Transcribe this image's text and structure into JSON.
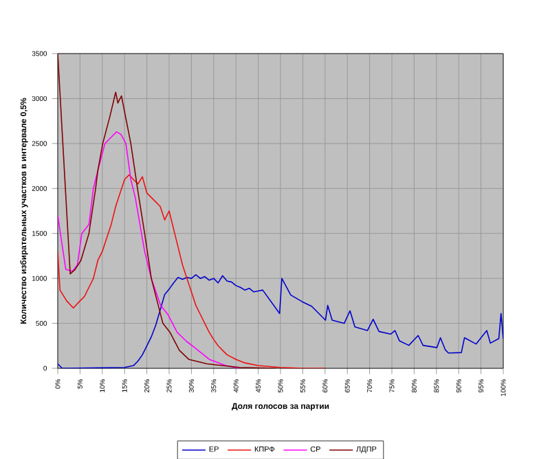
{
  "chart_data": {
    "type": "line",
    "xlabel": "Доля голосов за партии",
    "ylabel": "Количество избирательных участков в интервале 0,5%",
    "xlim": [
      0,
      100
    ],
    "ylim": [
      0,
      3500
    ],
    "xticks": [
      {
        "value": 0,
        "label": "0%"
      },
      {
        "value": 5,
        "label": "5%"
      },
      {
        "value": 10,
        "label": "10%"
      },
      {
        "value": 15,
        "label": "15%"
      },
      {
        "value": 20,
        "label": "20%"
      },
      {
        "value": 25,
        "label": "25%"
      },
      {
        "value": 30,
        "label": "30%"
      },
      {
        "value": 35,
        "label": "35%"
      },
      {
        "value": 40,
        "label": "40%"
      },
      {
        "value": 45,
        "label": "45%"
      },
      {
        "value": 50,
        "label": "50%"
      },
      {
        "value": 55,
        "label": "55%"
      },
      {
        "value": 60,
        "label": "60%"
      },
      {
        "value": 65,
        "label": "65%"
      },
      {
        "value": 70,
        "label": "70%"
      },
      {
        "value": 75,
        "label": "75%"
      },
      {
        "value": 80,
        "label": "80%"
      },
      {
        "value": 85,
        "label": "85%"
      },
      {
        "value": 90,
        "label": "90%"
      },
      {
        "value": 95,
        "label": "95%"
      },
      {
        "value": 100,
        "label": "100%"
      }
    ],
    "yticks": [
      0,
      500,
      1000,
      1500,
      2000,
      2500,
      3000,
      3500
    ],
    "grid": true,
    "legend": "bottom",
    "series": [
      {
        "name": "ЕР",
        "color": "#0000cc",
        "x": [
          0,
          1,
          15,
          17,
          18,
          19,
          20,
          21,
          22,
          23,
          24,
          25,
          26,
          27,
          28,
          29,
          30,
          31,
          32,
          33,
          34,
          35,
          36,
          37,
          38,
          39,
          40,
          41,
          42,
          43,
          44,
          45,
          46,
          49.8,
          50.3,
          52.3,
          54.9,
          57,
          60.1,
          60.6,
          61.6,
          64.3,
          65.6,
          66.7,
          69.5,
          70.8,
          72.1,
          74.7,
          75.7,
          76.7,
          78.8,
          80.9,
          82,
          85.1,
          85.9,
          87,
          87.7,
          90.6,
          91.3,
          93.9,
          96.3,
          97.1,
          99,
          99.5,
          100
        ],
        "values": [
          50,
          0,
          10,
          30,
          80,
          150,
          250,
          350,
          480,
          650,
          820,
          880,
          950,
          1010,
          990,
          1010,
          1000,
          1040,
          1000,
          1020,
          980,
          1000,
          950,
          1030,
          970,
          960,
          920,
          900,
          870,
          890,
          850,
          860,
          870,
          610,
          1000,
          815,
          740,
          690,
          535,
          700,
          535,
          500,
          640,
          460,
          420,
          545,
          410,
          380,
          420,
          305,
          255,
          365,
          255,
          230,
          340,
          205,
          170,
          175,
          340,
          270,
          420,
          280,
          330,
          610,
          330
        ]
      },
      {
        "name": "КПРФ",
        "color": "#ee1111",
        "x": [
          0,
          0.5,
          2,
          3.5,
          5,
          6,
          7,
          8,
          9,
          10,
          11,
          12,
          13,
          14,
          15,
          16,
          17,
          18,
          19,
          20,
          21,
          22,
          23,
          24,
          25,
          26,
          27,
          28,
          29,
          30,
          31,
          32,
          33,
          34,
          35,
          36,
          37,
          38,
          40,
          42,
          45,
          50,
          55,
          60
        ],
        "values": [
          1300,
          870,
          750,
          670,
          750,
          800,
          900,
          1000,
          1200,
          1300,
          1450,
          1600,
          1800,
          1950,
          2100,
          2150,
          2100,
          2050,
          2130,
          1950,
          1900,
          1850,
          1800,
          1650,
          1750,
          1550,
          1350,
          1150,
          1000,
          850,
          700,
          600,
          500,
          400,
          320,
          250,
          200,
          150,
          100,
          60,
          30,
          10,
          0,
          0
        ]
      },
      {
        "name": "СР",
        "color": "#ff00ff",
        "x": [
          0,
          1.8,
          3.3,
          4.4,
          5.4,
          7,
          8,
          9,
          10.6,
          11.6,
          13.2,
          14.2,
          15.3,
          16.4,
          17.4,
          19.5,
          21,
          23.1,
          24.7,
          26.8,
          28.9,
          31.5,
          34,
          37.7,
          40.8
        ],
        "values": [
          1700,
          1100,
          1080,
          1150,
          1500,
          1600,
          2000,
          2200,
          2500,
          2550,
          2630,
          2600,
          2500,
          2100,
          1900,
          1300,
          1000,
          700,
          600,
          400,
          300,
          200,
          100,
          30,
          0
        ]
      },
      {
        "name": "ЛДПР",
        "color": "#800000",
        "x": [
          0,
          2.8,
          3.9,
          5.2,
          7,
          8.5,
          9,
          10.1,
          11.7,
          13,
          13.5,
          14.3,
          16.4,
          17.9,
          19.5,
          21,
          23.6,
          25.2,
          27.3,
          29.4,
          33.5,
          40.8,
          49
        ],
        "values": [
          3500,
          1050,
          1100,
          1200,
          1500,
          2000,
          2200,
          2500,
          2800,
          3070,
          2950,
          3030,
          2500,
          2000,
          1500,
          1000,
          500,
          400,
          200,
          100,
          50,
          10,
          0
        ]
      }
    ]
  }
}
